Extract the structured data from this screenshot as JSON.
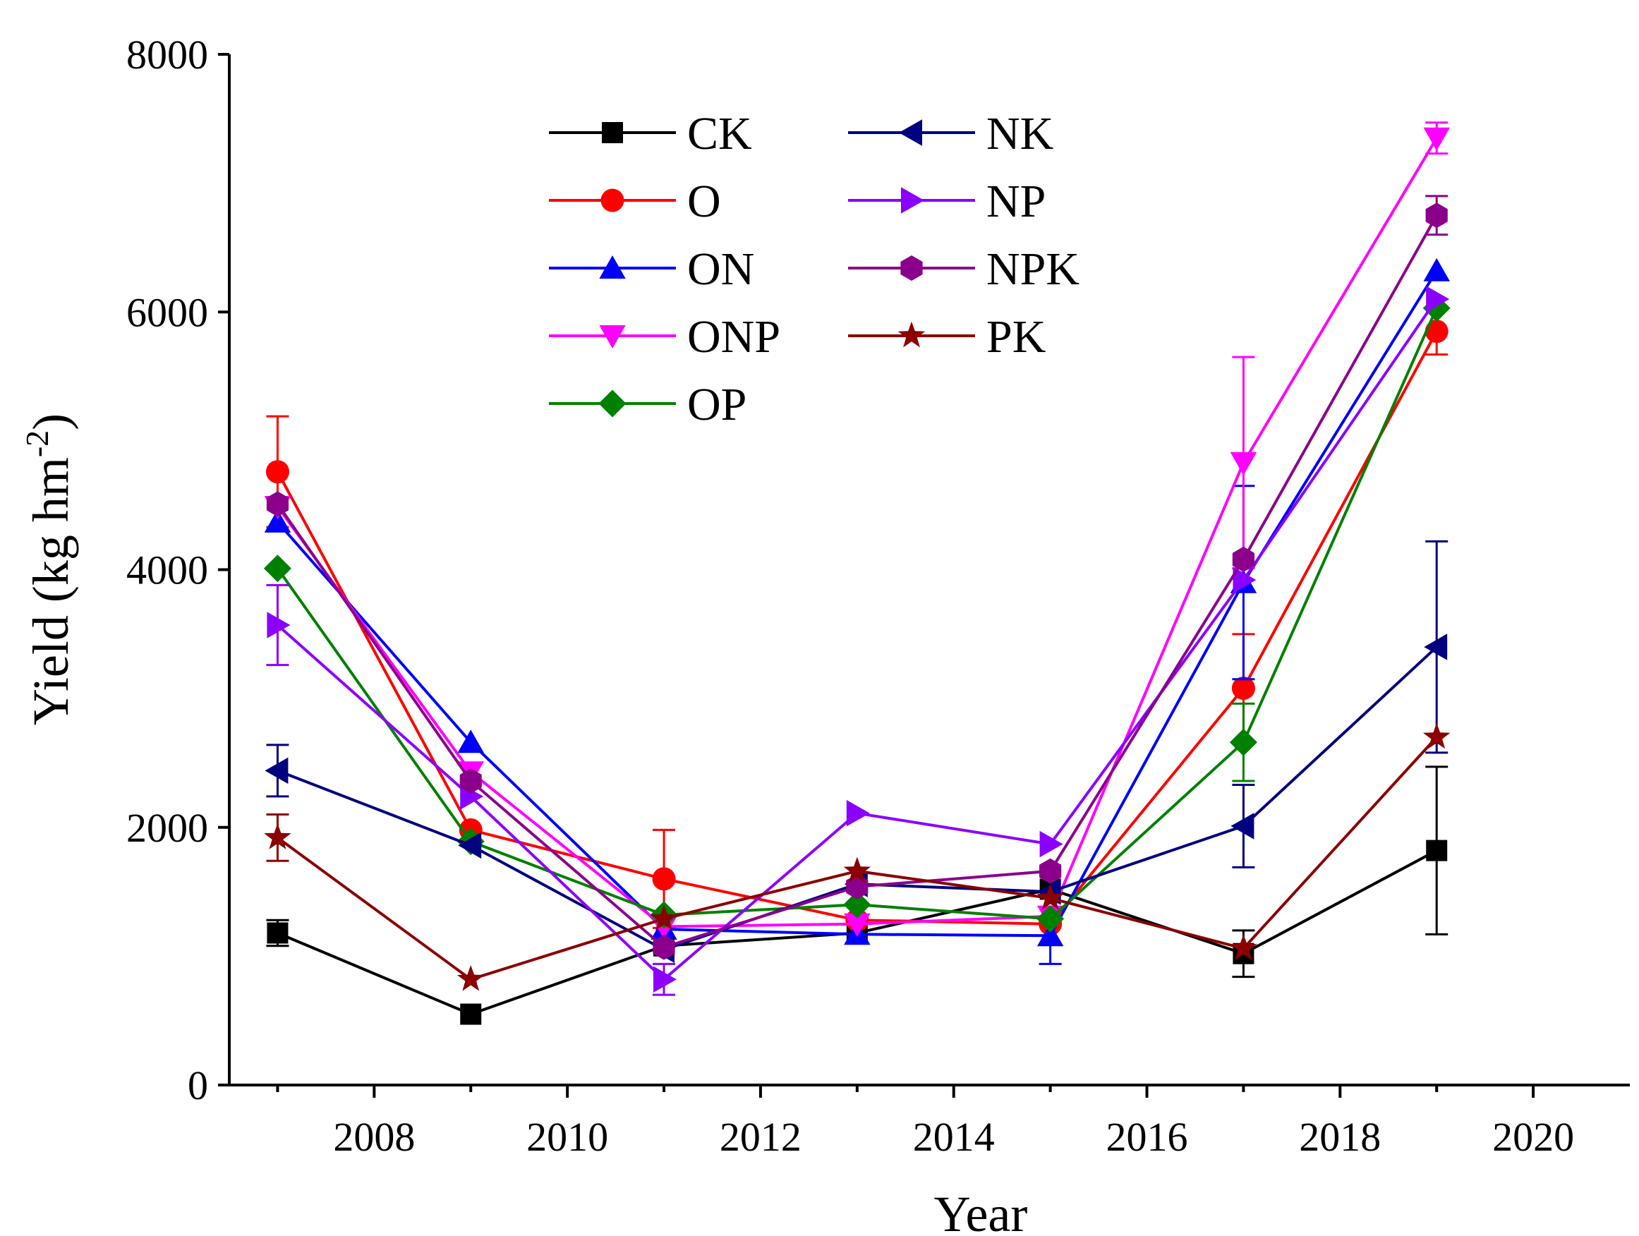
{
  "chart_data": {
    "type": "line",
    "xlabel": "Year",
    "ylabel": "Yield (kg hm",
    "ylabel_sup": "-2",
    "ylabel_close": ")",
    "x": [
      2007,
      2009,
      2011,
      2013,
      2015,
      2017,
      2019
    ],
    "xlim": [
      2006.5,
      2021
    ],
    "ylim": [
      0,
      8000
    ],
    "xticks": [
      2008,
      2010,
      2012,
      2014,
      2016,
      2018,
      2020
    ],
    "yticks": [
      0,
      2000,
      4000,
      6000,
      8000
    ],
    "grid": false,
    "legend_position": "top-center",
    "series": [
      {
        "name": "CK",
        "color": "#000000",
        "marker": "square",
        "values": [
          1180,
          550,
          1080,
          1180,
          1520,
          1020,
          1820
        ],
        "errors": [
          100,
          0,
          0,
          0,
          0,
          180,
          650
        ]
      },
      {
        "name": "O",
        "color": "#ff0000",
        "marker": "circle",
        "values": [
          4760,
          1980,
          1600,
          1280,
          1250,
          3080,
          5850
        ],
        "errors": [
          430,
          0,
          380,
          0,
          0,
          420,
          180
        ]
      },
      {
        "name": "ON",
        "color": "#0000ff",
        "marker": "triangle-up",
        "values": [
          4370,
          2660,
          1210,
          1170,
          1160,
          3900,
          6320
        ],
        "errors": [
          0,
          0,
          0,
          0,
          220,
          750,
          0
        ]
      },
      {
        "name": "ONP",
        "color": "#ff00ff",
        "marker": "triangle-down",
        "values": [
          4490,
          2430,
          1230,
          1250,
          1310,
          4830,
          7350
        ],
        "errors": [
          0,
          0,
          0,
          0,
          0,
          820,
          120
        ]
      },
      {
        "name": "OP",
        "color": "#008000",
        "marker": "diamond",
        "values": [
          4010,
          1890,
          1320,
          1400,
          1290,
          2660,
          6030
        ],
        "errors": [
          0,
          0,
          0,
          0,
          0,
          300,
          0
        ]
      },
      {
        "name": "NK",
        "color": "#000080",
        "marker": "triangle-left",
        "values": [
          2440,
          1860,
          1050,
          1560,
          1500,
          2010,
          3400
        ],
        "errors": [
          200,
          0,
          0,
          0,
          0,
          320,
          820
        ]
      },
      {
        "name": "NP",
        "color": "#8b00ff",
        "marker": "triangle-right",
        "values": [
          3570,
          2240,
          820,
          2110,
          1870,
          3920,
          6100
        ],
        "errors": [
          310,
          0,
          120,
          0,
          0,
          0,
          0
        ]
      },
      {
        "name": "NPK",
        "color": "#8b008b",
        "marker": "hexagon",
        "values": [
          4510,
          2360,
          1070,
          1540,
          1660,
          4080,
          6750
        ],
        "errors": [
          0,
          0,
          0,
          0,
          0,
          0,
          150
        ]
      },
      {
        "name": "PK",
        "color": "#8b0000",
        "marker": "star",
        "values": [
          1920,
          820,
          1290,
          1660,
          1450,
          1060,
          2700
        ],
        "errors": [
          180,
          0,
          0,
          0,
          0,
          0,
          0
        ]
      }
    ]
  }
}
